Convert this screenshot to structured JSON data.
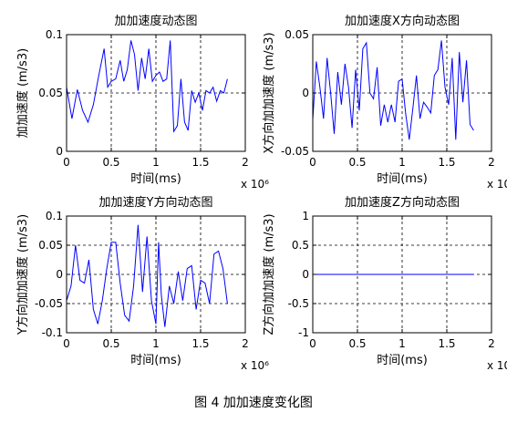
{
  "caption": "图 4  加加速度变化图",
  "colors": {
    "line": "#0000ff",
    "axis": "#000000",
    "grid": "#000000",
    "background": "#ffffff"
  },
  "chart_data": [
    {
      "type": "line",
      "title": "加加速度动态图",
      "xlabel": "时间(ms)",
      "ylabel": "加加速度 (m/s3)",
      "x_multiplier": "x 10⁶",
      "xlim": [
        0,
        2
      ],
      "ylim": [
        0,
        0.1
      ],
      "xticks": [
        0,
        0.5,
        1,
        1.5,
        2
      ],
      "xticklabels": [
        "0",
        "0.5",
        "1",
        "1.5",
        "2"
      ],
      "yticks": [
        0,
        0.05,
        0.1
      ],
      "yticklabels": [
        "0",
        "0.05",
        "0.1"
      ],
      "grid": true,
      "series": [
        {
          "x": [
            0,
            0.06,
            0.12,
            0.18,
            0.24,
            0.3,
            0.36,
            0.42,
            0.46,
            0.5,
            0.55,
            0.6,
            0.64,
            0.68,
            0.72,
            0.76,
            0.8,
            0.84,
            0.88,
            0.92,
            0.96,
            1.0,
            1.04,
            1.08,
            1.12,
            1.16,
            1.2,
            1.24,
            1.28,
            1.32,
            1.36,
            1.4,
            1.44,
            1.48,
            1.52,
            1.56,
            1.6,
            1.64,
            1.68,
            1.72,
            1.76,
            1.8
          ],
          "y": [
            0.055,
            0.028,
            0.053,
            0.035,
            0.025,
            0.04,
            0.065,
            0.088,
            0.055,
            0.06,
            0.062,
            0.078,
            0.06,
            0.07,
            0.095,
            0.083,
            0.052,
            0.08,
            0.062,
            0.088,
            0.06,
            0.065,
            0.068,
            0.06,
            0.062,
            0.095,
            0.017,
            0.022,
            0.062,
            0.025,
            0.018,
            0.052,
            0.042,
            0.05,
            0.035,
            0.052,
            0.05,
            0.055,
            0.043,
            0.052,
            0.05,
            0.062
          ]
        }
      ]
    },
    {
      "type": "line",
      "title": "加加速度X方向动态图",
      "xlabel": "时间(ms)",
      "ylabel": "X方向加加速度 (m/s3)",
      "x_multiplier": "x 10⁶",
      "xlim": [
        0,
        2
      ],
      "ylim": [
        -0.05,
        0.05
      ],
      "xticks": [
        0,
        0.5,
        1,
        1.5,
        2
      ],
      "xticklabels": [
        "0",
        "0.5",
        "1",
        "1.5",
        "2"
      ],
      "yticks": [
        -0.05,
        0,
        0.05
      ],
      "yticklabels": [
        "-0.05",
        "0",
        "0.05"
      ],
      "grid": true,
      "series": [
        {
          "x": [
            0,
            0.04,
            0.08,
            0.12,
            0.16,
            0.2,
            0.24,
            0.28,
            0.32,
            0.36,
            0.4,
            0.44,
            0.48,
            0.52,
            0.56,
            0.6,
            0.64,
            0.68,
            0.72,
            0.76,
            0.8,
            0.84,
            0.88,
            0.92,
            0.96,
            1.0,
            1.04,
            1.08,
            1.12,
            1.16,
            1.2,
            1.24,
            1.28,
            1.32,
            1.36,
            1.4,
            1.44,
            1.48,
            1.52,
            1.56,
            1.6,
            1.64,
            1.68,
            1.72,
            1.76,
            1.8
          ],
          "y": [
            -0.023,
            0.027,
            0.005,
            -0.022,
            0.03,
            0.0,
            -0.035,
            0.018,
            -0.01,
            0.025,
            0.005,
            -0.03,
            0.02,
            -0.015,
            0.038,
            0.043,
            0.0,
            -0.005,
            0.022,
            -0.028,
            -0.01,
            -0.025,
            -0.01,
            -0.025,
            0.01,
            0.012,
            -0.018,
            -0.04,
            -0.013,
            0.015,
            -0.022,
            -0.008,
            -0.012,
            -0.017,
            0.015,
            0.02,
            0.045,
            0.005,
            -0.01,
            0.03,
            -0.04,
            0.035,
            -0.008,
            0.028,
            -0.027,
            -0.032
          ]
        }
      ]
    },
    {
      "type": "line",
      "title": "加加速度Y方向动态图",
      "xlabel": "时间(ms)",
      "ylabel": "Y方向加加速度 (m/s3)",
      "x_multiplier": "x 10⁶",
      "xlim": [
        0,
        2
      ],
      "ylim": [
        -0.1,
        0.1
      ],
      "xticks": [
        0,
        0.5,
        1,
        1.5,
        2
      ],
      "xticklabels": [
        "0",
        "0.5",
        "1",
        "1.5",
        "2"
      ],
      "yticks": [
        -0.1,
        -0.05,
        0,
        0.05,
        0.1
      ],
      "yticklabels": [
        "-0.1",
        "-0.05",
        "0",
        "0.05",
        "0.1"
      ],
      "grid": true,
      "series": [
        {
          "x": [
            0,
            0.05,
            0.1,
            0.15,
            0.2,
            0.25,
            0.3,
            0.35,
            0.4,
            0.45,
            0.5,
            0.55,
            0.6,
            0.65,
            0.7,
            0.75,
            0.8,
            0.85,
            0.9,
            0.95,
            1.0,
            1.03,
            1.06,
            1.1,
            1.15,
            1.2,
            1.25,
            1.3,
            1.35,
            1.4,
            1.45,
            1.5,
            1.55,
            1.6,
            1.65,
            1.7,
            1.75,
            1.8
          ],
          "y": [
            -0.045,
            -0.02,
            0.05,
            -0.01,
            -0.015,
            0.025,
            -0.06,
            -0.085,
            -0.045,
            0.01,
            0.055,
            0.055,
            -0.015,
            -0.07,
            -0.08,
            -0.02,
            0.085,
            -0.03,
            0.065,
            -0.045,
            -0.085,
            0.055,
            -0.035,
            -0.09,
            -0.02,
            -0.05,
            0.005,
            -0.045,
            0.01,
            0.015,
            -0.06,
            -0.01,
            -0.015,
            -0.05,
            0.035,
            0.04,
            0.01,
            -0.05
          ]
        }
      ]
    },
    {
      "type": "line",
      "title": "加加速度Z方向动态图",
      "xlabel": "时间(ms)",
      "ylabel": "Z方向加加速度 (m/s3)",
      "x_multiplier": "x 10⁶",
      "xlim": [
        0,
        2
      ],
      "ylim": [
        -1,
        1
      ],
      "xticks": [
        0,
        0.5,
        1,
        1.5,
        2
      ],
      "xticklabels": [
        "0",
        "0.5",
        "1",
        "1.5",
        "2"
      ],
      "yticks": [
        -1,
        -0.5,
        0,
        0.5,
        1
      ],
      "yticklabels": [
        "-1",
        "-0.5",
        "0",
        "0.5",
        "1"
      ],
      "grid": true,
      "series": [
        {
          "x": [
            0,
            1.8
          ],
          "y": [
            0,
            0
          ]
        }
      ]
    }
  ]
}
